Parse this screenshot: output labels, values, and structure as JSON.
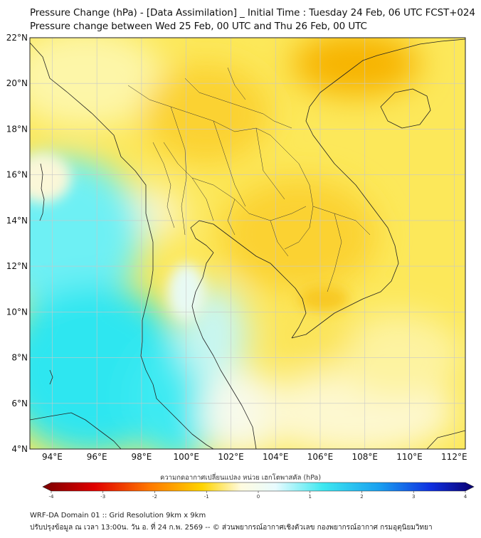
{
  "header": {
    "title_line1": "Pressure Change (hPa) - [Data Assimilation] _ Initial Time : Tuesday 24 Feb, 06 UTC FCST+024",
    "title_line2": "Pressure change between Wed 25 Feb, 00 UTC and Thu 26 Feb, 00 UTC"
  },
  "map": {
    "lat_labels": [
      "22°N",
      "20°N",
      "18°N",
      "16°N",
      "14°N",
      "12°N",
      "10°N",
      "8°N",
      "6°N",
      "4°N"
    ],
    "lon_labels": [
      "94°E",
      "96°E",
      "98°E",
      "100°E",
      "102°E",
      "104°E",
      "106°E",
      "108°E",
      "110°E",
      "112°E"
    ],
    "lat_range": [
      4,
      22
    ],
    "lon_range": [
      93,
      112.5
    ],
    "colors": {
      "positive": "#3ee8f0",
      "neutral": "#fbfbe8",
      "negative": "#f6b000",
      "coast": "#222222",
      "grid": "#c8c8c8"
    }
  },
  "colorbar": {
    "title": "ความกดอากาศเปลี่ยนแปลง หน่วย เฮกโตพาสคัล (hPa)",
    "ticks": [
      "-4",
      "-3",
      "-2",
      "-1",
      "0",
      "1",
      "2",
      "3",
      "4"
    ],
    "range": [
      -4,
      4
    ]
  },
  "footer": {
    "line1": "WRF-DA Domain 01 :: Grid Resolution 9km x 9km",
    "line2": "ปรับปรุงข้อมูล ณ เวลา 13:00น. วัน อ. ที่ 24 ก.พ. 2569 -- © ส่วนพยากรณ์อากาศเชิงตัวเลข กองพยากรณ์อากาศ กรมอุตุนิยมวิทยา"
  }
}
